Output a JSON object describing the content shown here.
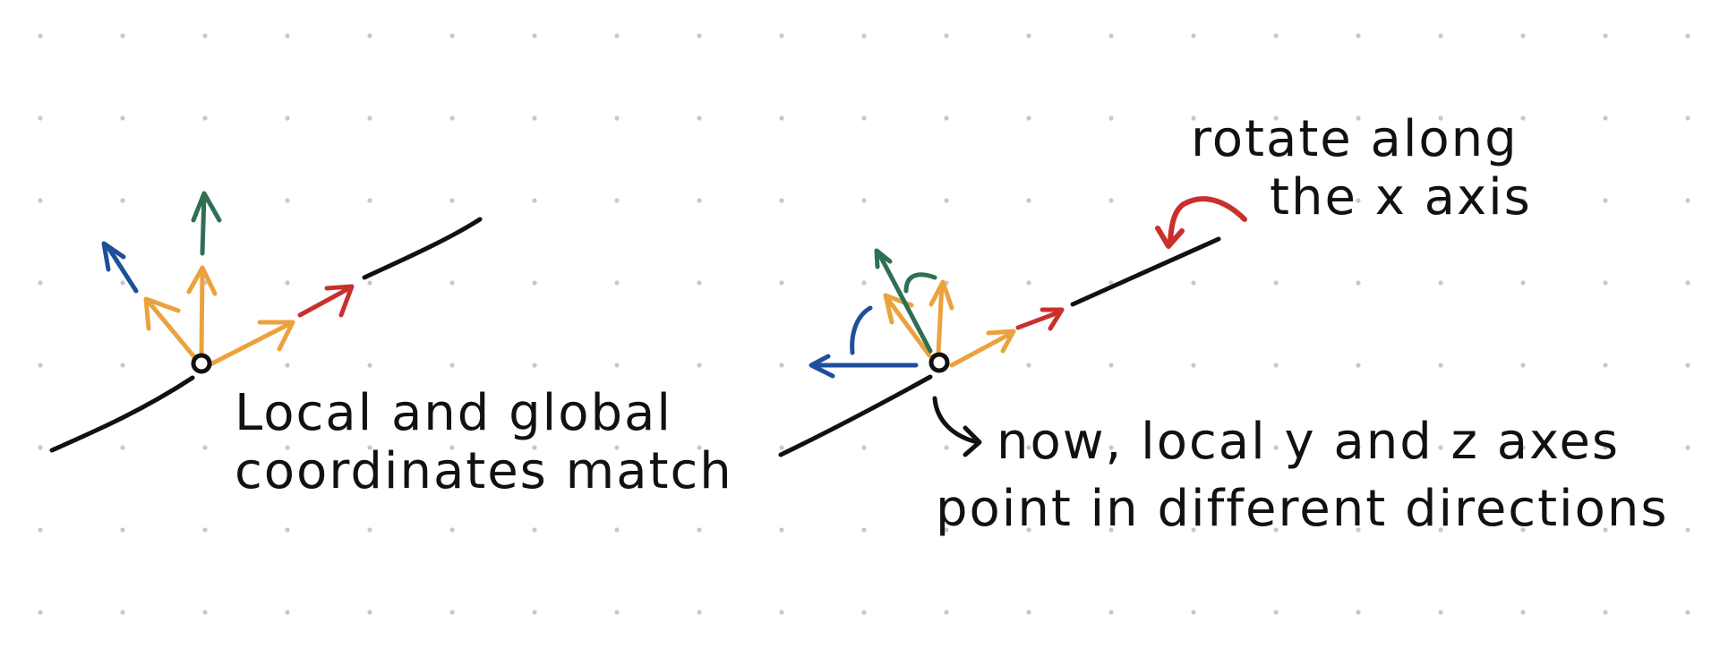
{
  "colors": {
    "background": "#ffffff",
    "dots": "#c8c8c8",
    "ink": "#111111",
    "orange": "#eba23e",
    "red": "#c9302c",
    "green": "#2f6f52",
    "blue": "#1f4f9a"
  },
  "left_panel": {
    "caption_line1": "Local and global",
    "caption_line2": "coordinates match"
  },
  "right_panel": {
    "rotate_line1": "rotate along",
    "rotate_line2": "the x axis",
    "caption_line1": "now, local y and z axes",
    "caption_line2": "point in different directions"
  }
}
